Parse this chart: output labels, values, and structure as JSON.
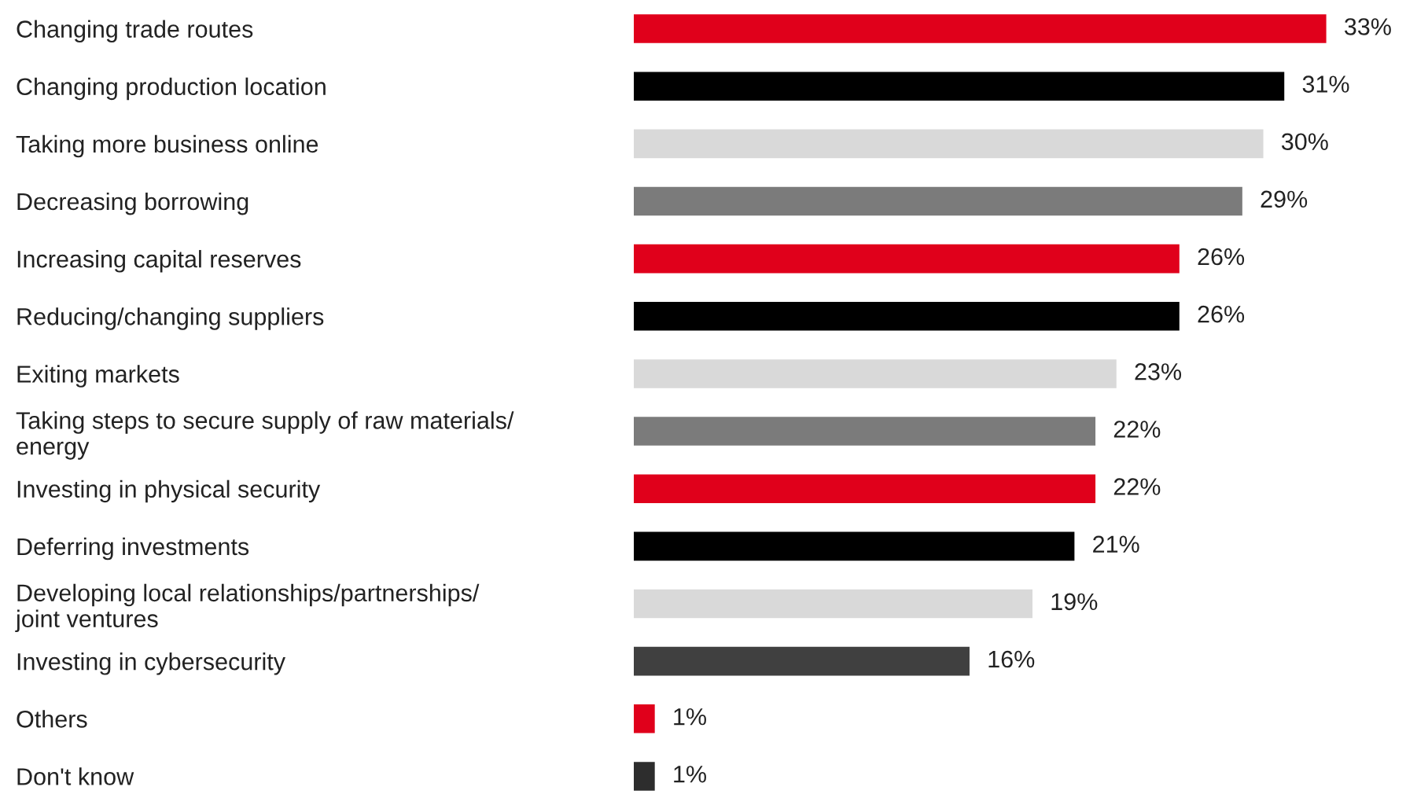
{
  "chart_data": {
    "type": "bar",
    "orientation": "horizontal",
    "categories": [
      "Changing trade routes",
      "Changing production location",
      "Taking more business online",
      "Decreasing borrowing",
      "Increasing capital reserves",
      "Reducing/changing suppliers",
      "Exiting markets",
      "Taking steps to secure supply of raw materials/\nenergy",
      "Investing in physical security",
      "Deferring investments",
      "Developing local relationships/partnerships/\njoint ventures",
      "Investing in cybersecurity",
      "Others",
      "Don't know"
    ],
    "values": [
      33,
      31,
      30,
      29,
      26,
      26,
      23,
      22,
      22,
      21,
      19,
      16,
      1,
      1
    ],
    "value_labels": [
      "33%",
      "31%",
      "30%",
      "29%",
      "26%",
      "26%",
      "23%",
      "22%",
      "22%",
      "21%",
      "19%",
      "16%",
      "1%",
      "1%"
    ],
    "colors": [
      "#e0001b",
      "#000000",
      "#d9d9d9",
      "#7b7b7b",
      "#e0001b",
      "#000000",
      "#d9d9d9",
      "#7b7b7b",
      "#e0001b",
      "#000000",
      "#d9d9d9",
      "#404040",
      "#e0001b",
      "#2d2d2d"
    ],
    "grid": false,
    "legend": false
  }
}
